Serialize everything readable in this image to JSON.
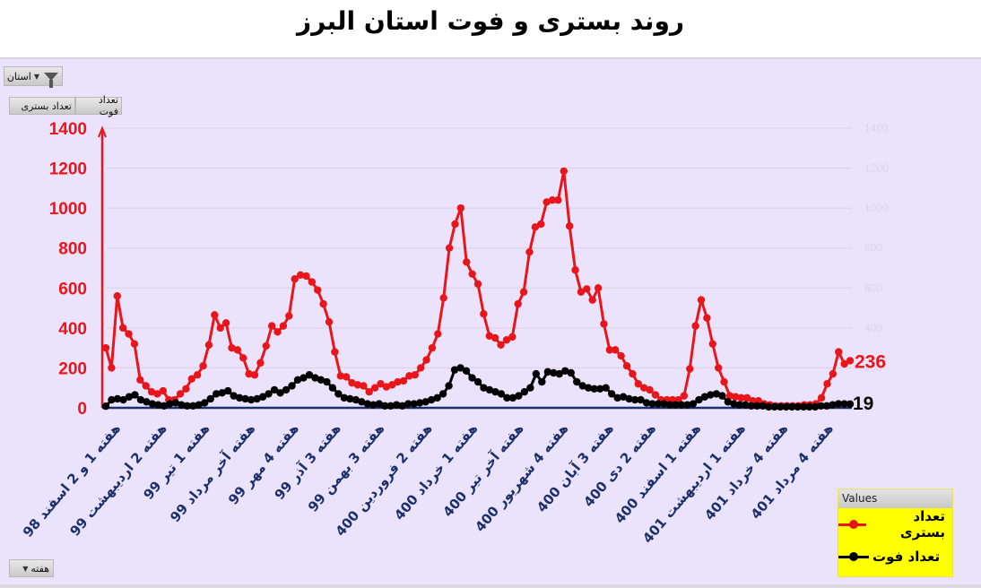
{
  "title": "روند بستری و فوت استان البرز",
  "controls": {
    "filter_button_label": "استان",
    "series_buttons": [
      "تعداد فوت",
      "تعداد بستری"
    ],
    "axis_field_button_label": "هفته"
  },
  "legend": {
    "header": "Values",
    "items": [
      {
        "label": "تعداد بستری",
        "color": "#e8161b"
      },
      {
        "label": "تعداد فوت",
        "color": "#000000"
      }
    ]
  },
  "colors": {
    "background": "#ebe2fb",
    "hospitalized": "#e8161b",
    "deaths": "#000000",
    "axis_left": "#e8161b",
    "x_axis": "#1a2f6b",
    "gridline": "#d9d2e3",
    "right_axis_text": "#dcd4ea"
  },
  "end_labels": {
    "hospitalized": "236",
    "deaths": "19"
  },
  "chart_data": {
    "type": "line",
    "title": "روند بستری و فوت استان البرز",
    "xlabel": "هفته",
    "ylabel": "",
    "ylim": [
      0,
      1400
    ],
    "yticks": [
      0,
      200,
      400,
      600,
      800,
      1000,
      1200,
      1400
    ],
    "secondary_yticks": [
      0,
      200,
      400,
      600,
      800,
      1000,
      1200,
      1400
    ],
    "grid": true,
    "legend_position": "bottom-right",
    "x_tick_labels": [
      "هفته 1 و 2 اسفند 98",
      "هفته 2 اردیبهشت 99",
      "هفته 1 تیر 99",
      "هفته آخر مرداد 99",
      "هفته 4 مهر 99",
      "هفته 3 آذر 99",
      "هفته 3 بهمن 99",
      "هفته 2 فروردین 400",
      "هفته 1 خرداد 400",
      "هفته آخر تیر 400",
      "هفته 4 شهریور 400",
      "هفته 3 آبان 400",
      "هفته 2 دی 400",
      "هفته 1 اسفند 400",
      "هفته 1 اردیبهشت 401",
      "هفته 4 خرداد 401",
      "هفته 4 مرداد 401"
    ],
    "series": [
      {
        "name": "تعداد بستری",
        "values": [
          300,
          200,
          560,
          400,
          370,
          320,
          140,
          110,
          80,
          70,
          85,
          40,
          40,
          70,
          95,
          145,
          165,
          210,
          315,
          465,
          400,
          425,
          300,
          290,
          250,
          170,
          165,
          225,
          310,
          410,
          380,
          410,
          460,
          645,
          665,
          660,
          630,
          590,
          520,
          430,
          280,
          160,
          155,
          125,
          115,
          110,
          80,
          100,
          120,
          105,
          115,
          130,
          135,
          160,
          165,
          200,
          240,
          300,
          370,
          550,
          800,
          920,
          1000,
          730,
          670,
          620,
          470,
          360,
          350,
          315,
          340,
          355,
          520,
          580,
          780,
          905,
          920,
          1030,
          1040,
          1040,
          1185,
          910,
          690,
          580,
          595,
          540,
          600,
          420,
          290,
          290,
          260,
          210,
          170,
          120,
          100,
          90,
          65,
          40,
          40,
          40,
          40,
          60,
          195,
          410,
          540,
          450,
          320,
          200,
          130,
          60,
          55,
          50,
          50,
          35,
          35,
          20,
          15,
          10,
          10,
          10,
          10,
          10,
          15,
          15,
          20,
          50,
          120,
          170,
          280,
          220,
          236
        ]
      },
      {
        "name": "تعداد فوت",
        "values": [
          8,
          40,
          45,
          40,
          55,
          65,
          40,
          30,
          20,
          15,
          10,
          20,
          25,
          15,
          10,
          10,
          15,
          25,
          45,
          70,
          75,
          85,
          60,
          50,
          45,
          40,
          45,
          55,
          70,
          90,
          75,
          90,
          110,
          140,
          150,
          165,
          150,
          140,
          130,
          100,
          70,
          50,
          45,
          40,
          30,
          20,
          15,
          20,
          10,
          10,
          15,
          10,
          20,
          20,
          25,
          30,
          40,
          50,
          70,
          110,
          190,
          200,
          185,
          150,
          130,
          100,
          90,
          80,
          70,
          50,
          50,
          60,
          80,
          100,
          170,
          130,
          180,
          175,
          170,
          185,
          175,
          130,
          110,
          100,
          95,
          95,
          100,
          70,
          50,
          55,
          45,
          40,
          40,
          25,
          20,
          20,
          20,
          15,
          15,
          15,
          15,
          20,
          40,
          55,
          65,
          70,
          60,
          30,
          20,
          15,
          15,
          10,
          10,
          10,
          5,
          5,
          5,
          5,
          5,
          5,
          5,
          5,
          5,
          10,
          10,
          15,
          20,
          20,
          19
        ]
      }
    ]
  }
}
